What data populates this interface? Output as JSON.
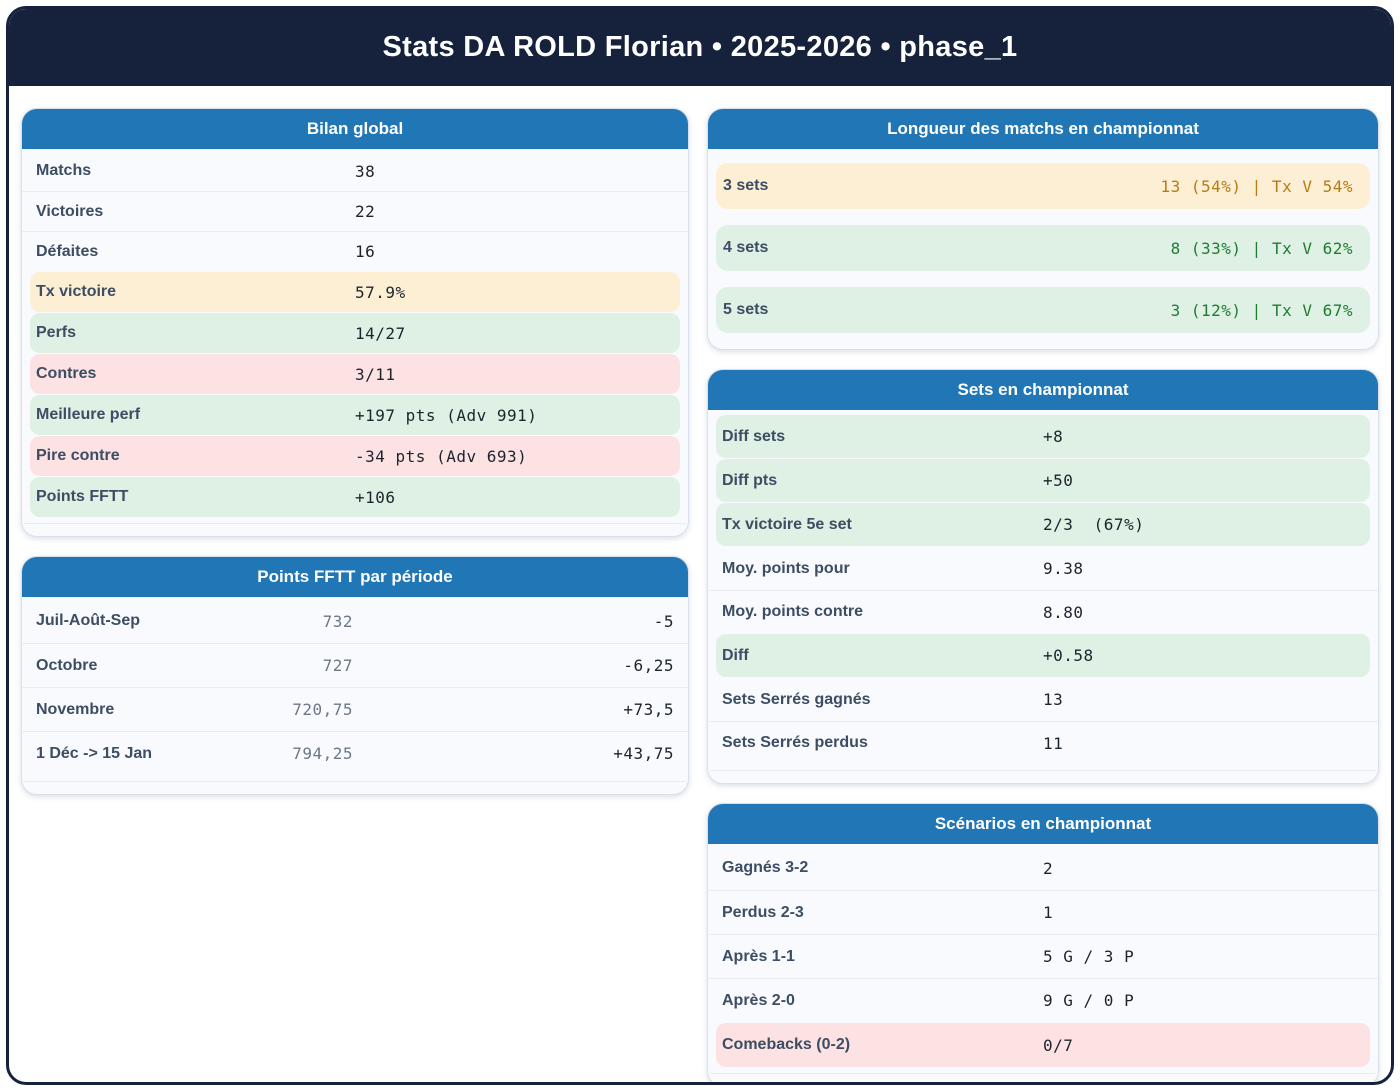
{
  "title": "Stats DA ROLD Florian • 2025-2026 • phase_1",
  "colors": {
    "frame_navy": "#16223c",
    "header_blue": "#2176b5",
    "highlight_orange_bg": "#fcefd4",
    "highlight_green_bg": "#dff0e4",
    "highlight_pink_bg": "#fce2e2",
    "value_orange_text": "#b67b16",
    "value_green_text": "#1f7c33",
    "label_slate": "#3d4d63"
  },
  "cards": {
    "bilan": {
      "title": "Bilan global",
      "rows": [
        {
          "label": "Matchs",
          "value": "38",
          "hl": ""
        },
        {
          "label": "Victoires",
          "value": "22",
          "hl": ""
        },
        {
          "label": "Défaites",
          "value": "16",
          "hl": ""
        },
        {
          "label": "Tx victoire",
          "value": "57.9%",
          "hl": "orange"
        },
        {
          "label": "Perfs",
          "value": "14/27",
          "hl": "green"
        },
        {
          "label": "Contres",
          "value": "3/11",
          "hl": "pink"
        },
        {
          "label": "Meilleure perf",
          "value": "+197 pts (Adv 991)",
          "hl": "green"
        },
        {
          "label": "Pire contre",
          "value": "-34 pts (Adv 693)",
          "hl": "pink"
        },
        {
          "label": "Points FFTT",
          "value": "+106",
          "hl": "green"
        }
      ]
    },
    "periodes": {
      "title": "Points FFTT par période",
      "rows": [
        {
          "label": "Juil-Août-Sep",
          "points": "732",
          "delta": "-5"
        },
        {
          "label": "Octobre",
          "points": "727",
          "delta": "-6,25"
        },
        {
          "label": "Novembre",
          "points": "720,75",
          "delta": "+73,5"
        },
        {
          "label": "1 Déc -> 15 Jan",
          "points": "794,25",
          "delta": "+43,75"
        }
      ]
    },
    "longueur": {
      "title": "Longueur des matchs en championnat",
      "rows": [
        {
          "label": "3 sets",
          "value": "13 (54%) | Tx V 54%",
          "hl": "orange"
        },
        {
          "label": "4 sets",
          "value": "8 (33%) | Tx V 62%",
          "hl": "green"
        },
        {
          "label": "5 sets",
          "value": "3 (12%) | Tx V 67%",
          "hl": "green"
        }
      ]
    },
    "sets": {
      "title": "Sets en championnat",
      "rows": [
        {
          "label": "Diff sets",
          "value": "+8",
          "hl": "green"
        },
        {
          "label": "Diff pts",
          "value": "+50",
          "hl": "green"
        },
        {
          "label": "Tx victoire 5e set",
          "value": "2/3  (67%)",
          "hl": "green"
        },
        {
          "label": "Moy. points pour",
          "value": "9.38",
          "hl": ""
        },
        {
          "label": "Moy. points contre",
          "value": "8.80",
          "hl": ""
        },
        {
          "label": "Diff",
          "value": "+0.58",
          "hl": "green"
        },
        {
          "label": "Sets Serrés gagnés",
          "value": "13",
          "hl": ""
        },
        {
          "label": "Sets Serrés perdus",
          "value": "11",
          "hl": ""
        }
      ]
    },
    "scenarios": {
      "title": "Scénarios en championnat",
      "rows": [
        {
          "label": "Gagnés 3-2",
          "value": "2",
          "hl": ""
        },
        {
          "label": "Perdus 2-3",
          "value": "1",
          "hl": ""
        },
        {
          "label": "Après 1-1",
          "value": "5 G / 3 P",
          "hl": ""
        },
        {
          "label": "Après 2-0",
          "value": "9 G / 0 P",
          "hl": ""
        },
        {
          "label": "Comebacks (0-2)",
          "value": "0/7",
          "hl": "pink"
        }
      ]
    }
  }
}
